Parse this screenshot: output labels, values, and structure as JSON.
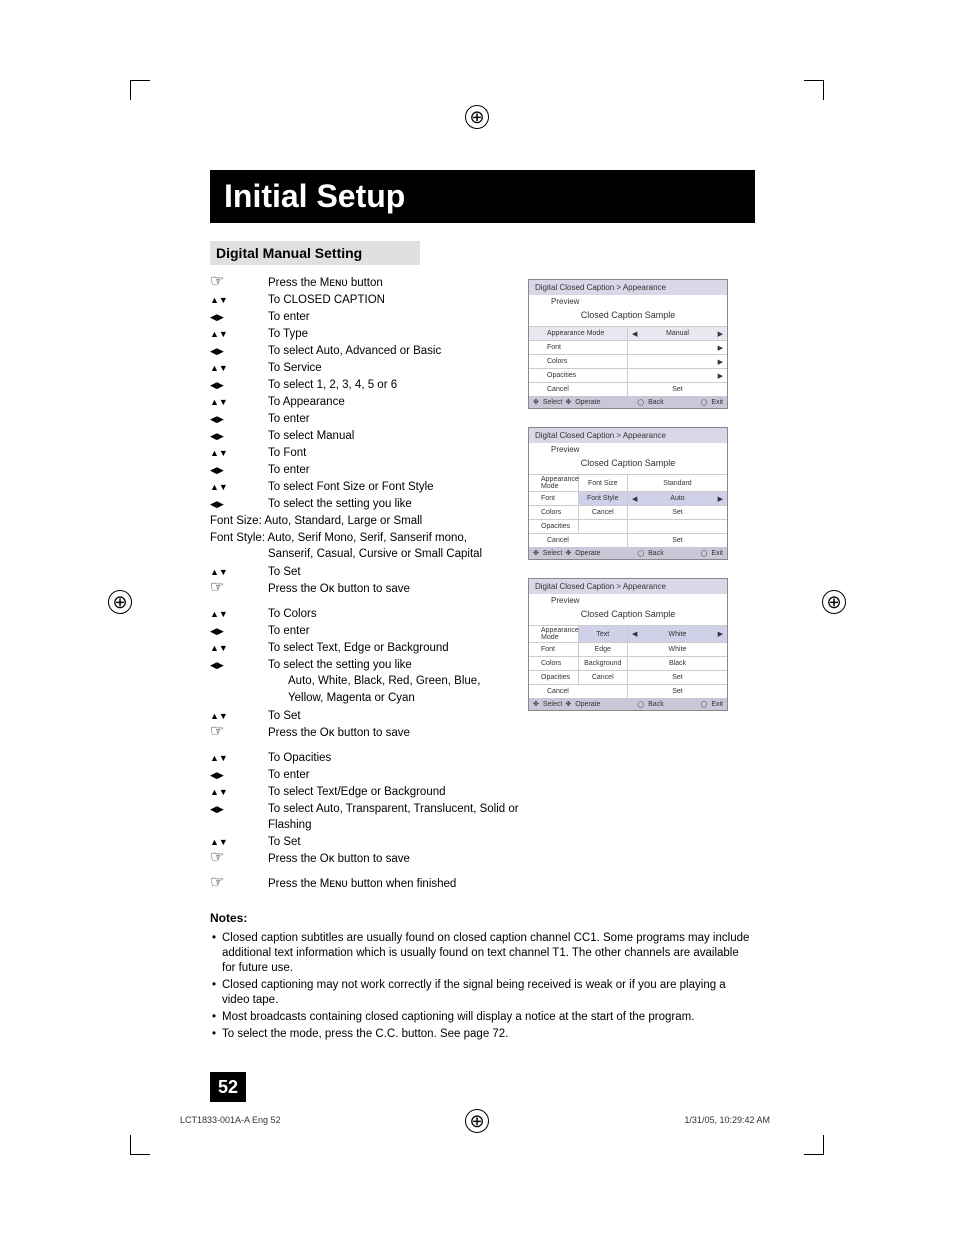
{
  "page_title": "Initial Setup",
  "section_heading": "Digital Manual Setting",
  "steps_block1": [
    {
      "icon": "hand",
      "text": "Press the Mᴇɴᴜ button"
    },
    {
      "icon": "ud",
      "text": "To CLOSED CAPTION"
    },
    {
      "icon": "lr",
      "text": "To enter"
    },
    {
      "icon": "ud",
      "text": "To Type"
    },
    {
      "icon": "lr",
      "text": "To select Auto, Advanced or Basic"
    },
    {
      "icon": "ud",
      "text": "To Service"
    },
    {
      "icon": "lr",
      "text": "To select 1, 2, 3, 4, 5 or 6"
    },
    {
      "icon": "ud",
      "text": "To Appearance"
    },
    {
      "icon": "lr",
      "text": "To enter"
    },
    {
      "icon": "lr",
      "text": "To select Manual"
    },
    {
      "icon": "ud",
      "text": "To Font"
    },
    {
      "icon": "lr",
      "text": "To enter"
    },
    {
      "icon": "ud",
      "text": "To select Font Size or Font Style"
    },
    {
      "icon": "lr",
      "text": "To select the setting you like"
    }
  ],
  "font_size_line": "Font Size: Auto, Standard, Large or Small",
  "font_style_line1": "Font Style: Auto, Serif Mono, Serif, Sanserif mono,",
  "font_style_line2": "Sanserif, Casual, Cursive or Small Capital",
  "steps_block2": [
    {
      "icon": "ud",
      "text": "To Set"
    },
    {
      "icon": "hand",
      "text": "Press the Oᴋ button to save"
    }
  ],
  "steps_block3": [
    {
      "icon": "ud",
      "text": "To Colors"
    },
    {
      "icon": "lr",
      "text": "To enter"
    },
    {
      "icon": "ud",
      "text": "To select Text, Edge or Background"
    },
    {
      "icon": "lr",
      "text": "To select the setting you like"
    }
  ],
  "colors_sub1": "Auto, White, Black, Red, Green, Blue,",
  "colors_sub2": "Yellow, Magenta or Cyan",
  "steps_block4": [
    {
      "icon": "ud",
      "text": "To Set"
    },
    {
      "icon": "hand",
      "text": "Press the Oᴋ button to save"
    }
  ],
  "steps_block5": [
    {
      "icon": "ud",
      "text": "To Opacities"
    },
    {
      "icon": "lr",
      "text": "To enter"
    },
    {
      "icon": "ud",
      "text": "To select Text/Edge or Background"
    },
    {
      "icon": "lr",
      "text": "To select Auto, Transparent, Translucent, Solid or Flashing"
    },
    {
      "icon": "ud",
      "text": "To Set"
    },
    {
      "icon": "hand",
      "text": "Press the Oᴋ button to save"
    }
  ],
  "steps_block6": [
    {
      "icon": "hand",
      "text": "Press the Mᴇɴᴜ button when finished"
    }
  ],
  "osd_common": {
    "title": "Digital Closed Caption  >  Appearance",
    "preview_label": "Preview",
    "sample": "Closed Caption Sample",
    "footer": {
      "select": "Select",
      "operate": "Operate",
      "back": "Back",
      "exit": "Exit",
      "back_sup": "BACK",
      "exit_sup": "MENU"
    }
  },
  "osd1_rows": [
    {
      "l": "Appearance Mode",
      "r": "Manual",
      "lr": true,
      "hl": true
    },
    {
      "l": "Font",
      "r": "",
      "arr": true
    },
    {
      "l": "Colors",
      "r": "",
      "arr": true
    },
    {
      "l": "Opacities",
      "r": "",
      "arr": true
    },
    {
      "l": "Cancel",
      "r": "Set",
      "btns": true
    }
  ],
  "osd2_rows": [
    {
      "l": "Appearance Mode",
      "m": "Font Size",
      "r": "Standard",
      "hl_m": false
    },
    {
      "l": "Font",
      "m": "Font Style",
      "r": "Auto",
      "lr": true,
      "hl_m": true
    },
    {
      "l": "Colors",
      "m": "Cancel",
      "r": "Set",
      "btns": true
    },
    {
      "l": "Opacities",
      "m": "",
      "r": ""
    },
    {
      "l": "Cancel",
      "r": "Set",
      "btns": true,
      "full": true
    }
  ],
  "osd3_rows": [
    {
      "l": "Appearance Mode",
      "m": "Text",
      "r": "White",
      "lr": true,
      "hl_m": true
    },
    {
      "l": "Font",
      "m": "Edge",
      "r": "White"
    },
    {
      "l": "Colors",
      "m": "Background",
      "r": "Black"
    },
    {
      "l": "Opacities",
      "m": "Cancel",
      "r": "Set",
      "btns": true
    },
    {
      "l": "Cancel",
      "r": "Set",
      "btns": true,
      "full": true
    }
  ],
  "notes_heading": "Notes:",
  "notes": [
    "Closed caption subtitles are usually found on closed caption channel CC1. Some programs may include additional text information which is usually found on text channel T1. The other channels are available for future use.",
    "Closed captioning may not work correctly if the signal being received is weak or if you are playing a video tape.",
    "Most broadcasts containing closed captioning will display a notice at the start of the program.",
    "To select the mode, press the C.C. button. See page 72."
  ],
  "page_number": "52",
  "footer_left": "LCT1833-001A-A Eng   52",
  "footer_right": "1/31/05, 10:29:42 AM"
}
